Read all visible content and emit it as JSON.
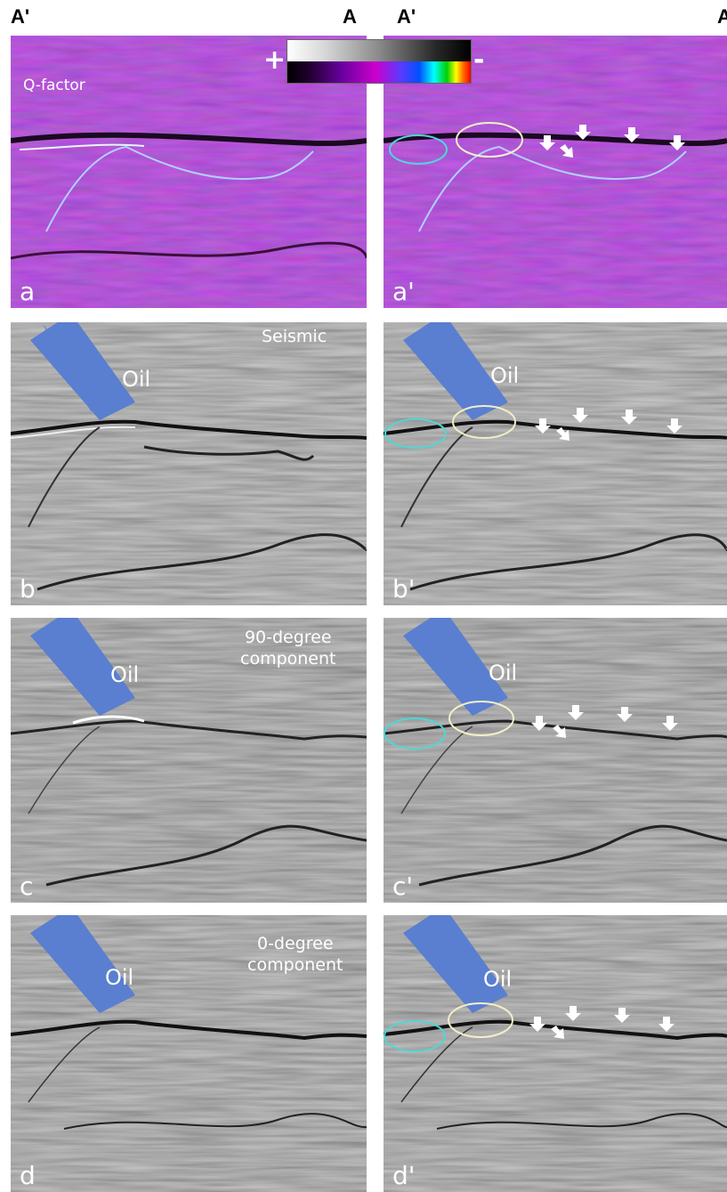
{
  "headers": {
    "left_a_prime": "A'",
    "left_a": "A",
    "right_a_prime": "A'",
    "right_a": "A"
  },
  "colorbar": {
    "plus": "+",
    "minus": "-"
  },
  "panels": {
    "a": {
      "letter": "a",
      "title": "Q-factor"
    },
    "a2": {
      "letter": "a'"
    },
    "b": {
      "letter": "b",
      "title": "Seismic",
      "oil": "Oil"
    },
    "b2": {
      "letter": "b'",
      "oil": "Oil"
    },
    "c": {
      "letter": "c",
      "title_line1": "90-degree",
      "title_line2": "component",
      "oil": "Oil"
    },
    "c2": {
      "letter": "c'",
      "oil": "Oil"
    },
    "d": {
      "letter": "d",
      "title_line1": "0-degree",
      "title_line2": "component",
      "oil": "Oil"
    },
    "d2": {
      "letter": "d'",
      "oil": "Oil"
    }
  },
  "colors": {
    "q_base": "#9a3ab8",
    "seismic_base": "#9a9a9a",
    "arrow_blue": "#5a7fd0",
    "cyan_ellipse": "#4fd6d6",
    "cream_ellipse": "#f2eec8",
    "white_arrow": "#ffffff"
  }
}
